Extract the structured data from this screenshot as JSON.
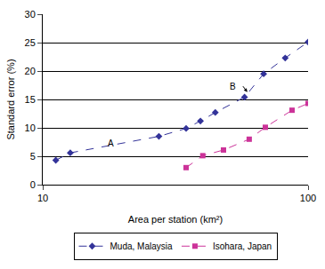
{
  "chart_data": {
    "type": "line",
    "x_label": "Area per station (km²)",
    "y_label": "Standard error (%)",
    "log": "x",
    "xlim": [
      10,
      100
    ],
    "xticks": [
      10,
      100
    ],
    "ylim": [
      0,
      30
    ],
    "yticks": [
      0,
      5,
      10,
      15,
      20,
      25,
      30
    ],
    "grid": true,
    "legend": "bottom",
    "series": [
      {
        "name": "Muda, Malaysia",
        "color": "#333399",
        "marker": "diamond",
        "line_style": "dash",
        "x": [
          11.2,
          12.7,
          27.4,
          34.7,
          39.3,
          44.7,
          57.6,
          68,
          82,
          100
        ],
        "values": [
          4.3,
          5.6,
          8.5,
          9.9,
          11.2,
          12.7,
          15.4,
          19.5,
          22.3,
          25.1
        ]
      },
      {
        "name": "Isohara, Japan",
        "color": "#cc3399",
        "marker": "square",
        "line_style": "dash",
        "x": [
          34.7,
          40.1,
          48,
          60,
          69,
          87,
          100
        ],
        "values": [
          3.0,
          5.1,
          6.1,
          8.0,
          10.1,
          13.1,
          14.3
        ]
      }
    ],
    "annotations": [
      {
        "text": "A",
        "x": 18,
        "y": 7.2
      },
      {
        "text": "B",
        "x": 52,
        "y": 17.2
      }
    ]
  }
}
